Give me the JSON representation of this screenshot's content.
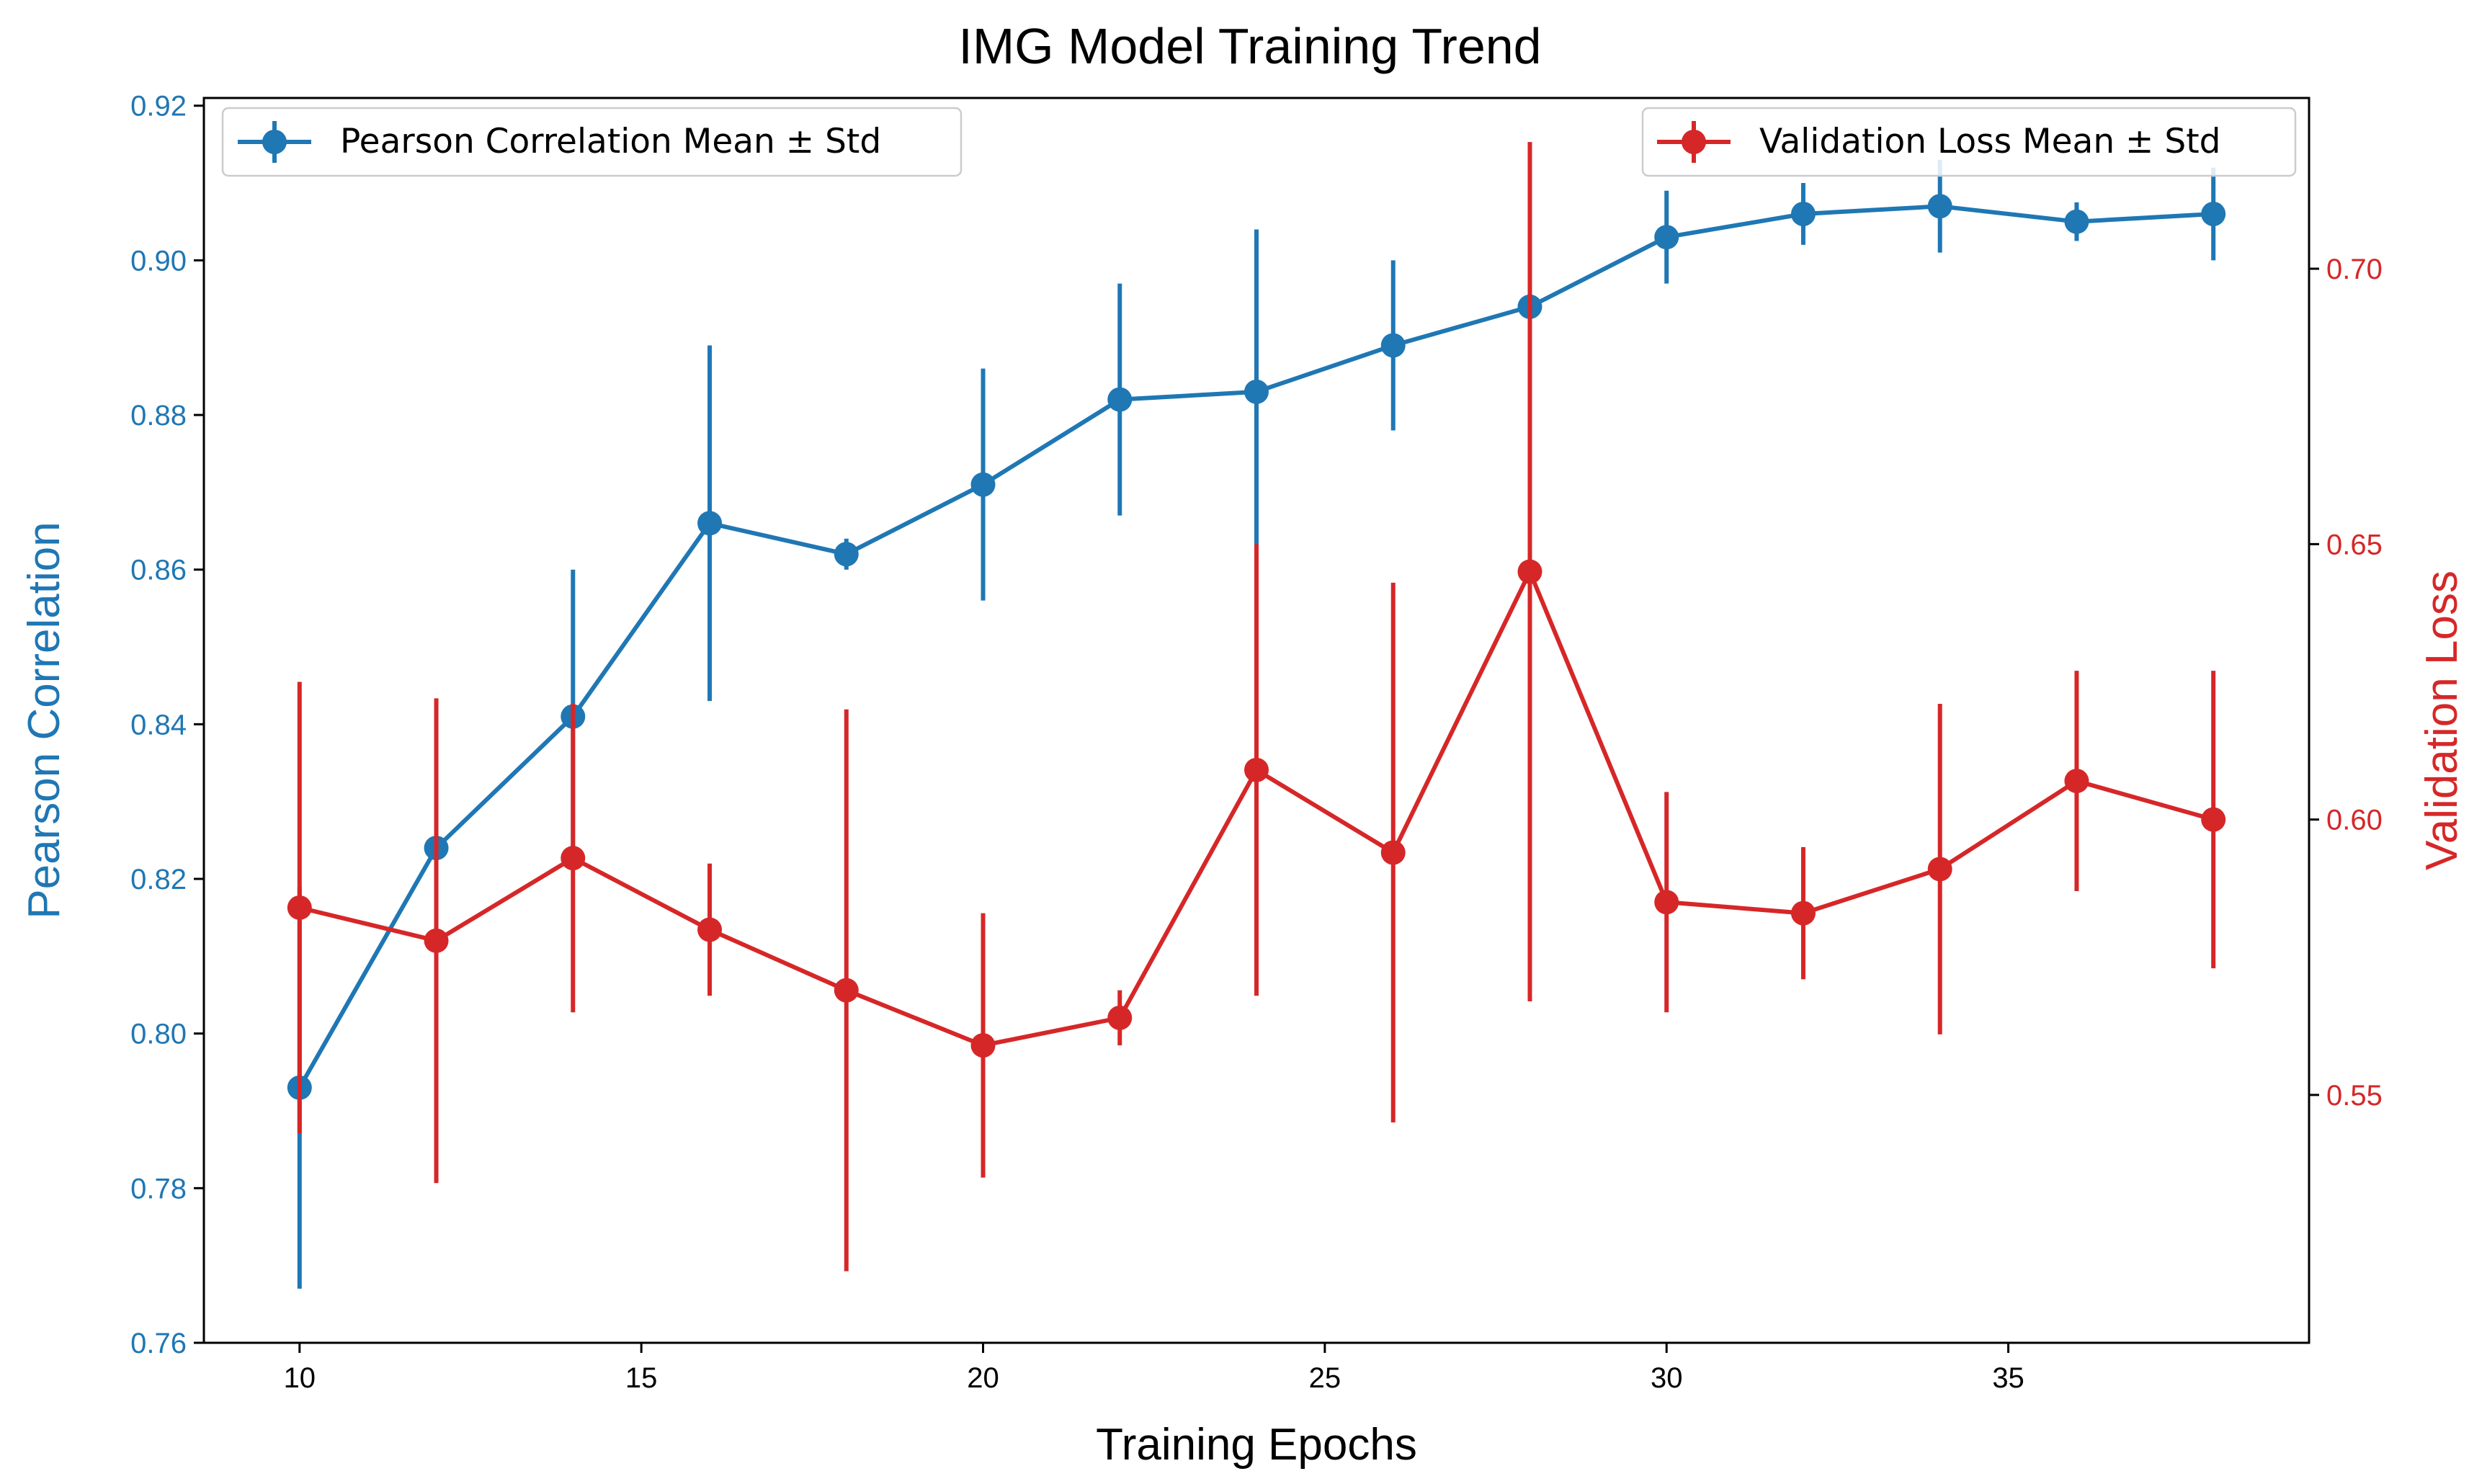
{
  "chart_data": {
    "type": "line",
    "title": "IMG Model Training Trend",
    "xlabel": "Training Epochs",
    "x_ticks": [
      10,
      15,
      20,
      25,
      30,
      35
    ],
    "xlim": [
      8.6,
      39.4
    ],
    "grid": false,
    "left_axis": {
      "label": "Pearson Correlation",
      "color": "#1f77b4",
      "ylim": [
        0.76,
        0.921
      ],
      "ticks": [
        0.76,
        0.78,
        0.8,
        0.82,
        0.84,
        0.86,
        0.88,
        0.9,
        0.92
      ],
      "tick_labels": [
        "0.76",
        "0.78",
        "0.80",
        "0.82",
        "0.84",
        "0.86",
        "0.88",
        "0.90",
        "0.92"
      ]
    },
    "right_axis": {
      "label": "Validation Loss",
      "color": "#d62728",
      "ylim": [
        0.505,
        0.731
      ],
      "ticks": [
        0.55,
        0.6,
        0.65,
        0.7
      ],
      "tick_labels": [
        "0.55",
        "0.60",
        "0.65",
        "0.70"
      ]
    },
    "x": [
      10,
      12,
      14,
      16,
      18,
      20,
      22,
      24,
      26,
      28,
      30,
      32,
      34,
      36,
      38
    ],
    "series": [
      {
        "name": "Pearson Correlation Mean ± Std",
        "axis": "left",
        "color": "#1f77b4",
        "values": [
          0.793,
          0.824,
          0.841,
          0.866,
          0.862,
          0.871,
          0.882,
          0.883,
          0.889,
          0.894,
          0.903,
          0.906,
          0.907,
          0.905,
          0.906
        ],
        "std": [
          0.026,
          0.0,
          0.019,
          0.023,
          0.002,
          0.015,
          0.015,
          0.021,
          0.011,
          0.0,
          0.006,
          0.004,
          0.006,
          0.0025,
          0.006
        ]
      },
      {
        "name": "Validation Loss Mean ± Std",
        "axis": "right",
        "color": "#d62728",
        "values": [
          0.584,
          0.578,
          0.593,
          0.58,
          0.569,
          0.559,
          0.564,
          0.609,
          0.594,
          0.645,
          0.585,
          0.583,
          0.591,
          0.607,
          0.6
        ],
        "std": [
          0.041,
          0.044,
          0.028,
          0.012,
          0.051,
          0.024,
          0.005,
          0.041,
          0.049,
          0.078,
          0.02,
          0.012,
          0.03,
          0.02,
          0.027
        ]
      }
    ],
    "legends": [
      {
        "label": "Pearson Correlation Mean ± Std",
        "placement": "upper-left"
      },
      {
        "label": "Validation Loss Mean ± Std",
        "placement": "upper-right"
      }
    ]
  }
}
